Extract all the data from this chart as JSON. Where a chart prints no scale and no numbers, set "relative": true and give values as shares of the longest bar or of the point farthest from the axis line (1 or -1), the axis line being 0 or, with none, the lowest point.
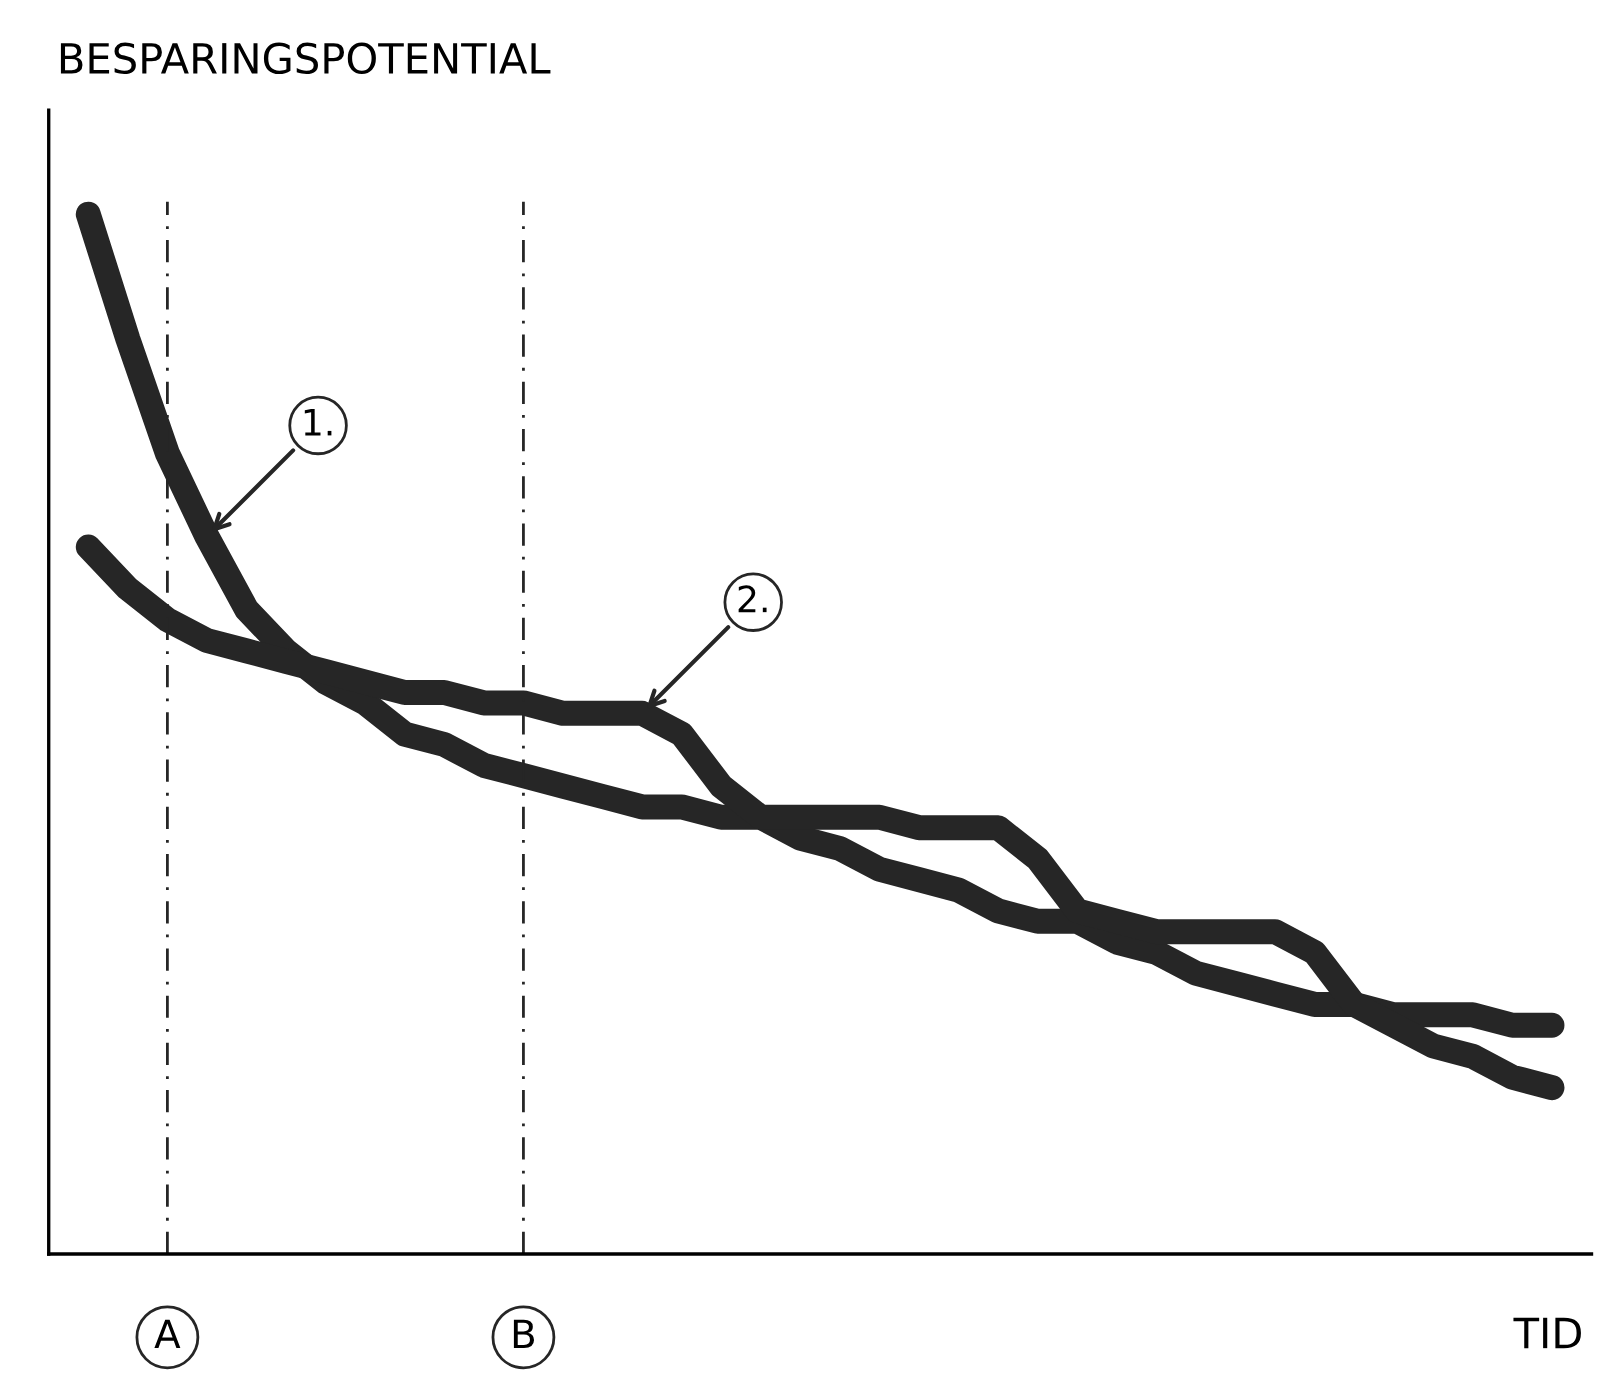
{
  "chart_data": {
    "type": "line",
    "relative": true,
    "xlabel": "TID",
    "ylabel": "BESPARINGSPOTENTIAL",
    "categories": [
      null,
      null,
      "A",
      null,
      null,
      null,
      null,
      null,
      null,
      null,
      null,
      "B",
      null,
      null,
      null,
      null,
      null,
      null,
      null,
      null,
      null,
      null,
      null,
      null,
      null,
      null,
      null,
      null,
      null,
      null,
      null,
      null,
      null,
      null,
      null,
      null,
      null,
      null
    ],
    "series": [
      {
        "color": "#262626",
        "values": [
          1.0,
          0.88,
          0.77,
          0.69,
          0.62,
          0.58,
          0.55,
          0.53,
          0.5,
          0.49,
          0.47,
          0.46,
          0.45,
          0.44,
          0.43,
          0.43,
          0.42,
          0.42,
          0.4,
          0.39,
          0.37,
          0.36,
          0.35,
          0.33,
          0.32,
          0.32,
          0.3,
          0.29,
          0.27,
          0.26,
          0.25,
          0.24,
          0.24,
          0.23,
          0.23,
          0.23,
          0.22,
          0.22
        ]
      },
      {
        "color": "#262626",
        "values": [
          0.68,
          0.64,
          0.61,
          0.59,
          0.58,
          0.57,
          0.56,
          0.55,
          0.54,
          0.54,
          0.53,
          0.53,
          0.52,
          0.52,
          0.52,
          0.5,
          0.45,
          0.42,
          0.42,
          0.42,
          0.42,
          0.41,
          0.41,
          0.41,
          0.38,
          0.33,
          0.32,
          0.31,
          0.31,
          0.31,
          0.31,
          0.29,
          0.24,
          0.22,
          0.2,
          0.19,
          0.17,
          0.16
        ]
      }
    ],
    "annotations": [
      "1.",
      "2."
    ],
    "ref_lines": [
      {
        "axis": "x",
        "value": "A",
        "line_style": "dashed",
        "color": "#262626"
      },
      {
        "axis": "x",
        "value": "B",
        "line_style": "dashed",
        "color": "#262626"
      }
    ],
    "line_style": "solid"
  }
}
